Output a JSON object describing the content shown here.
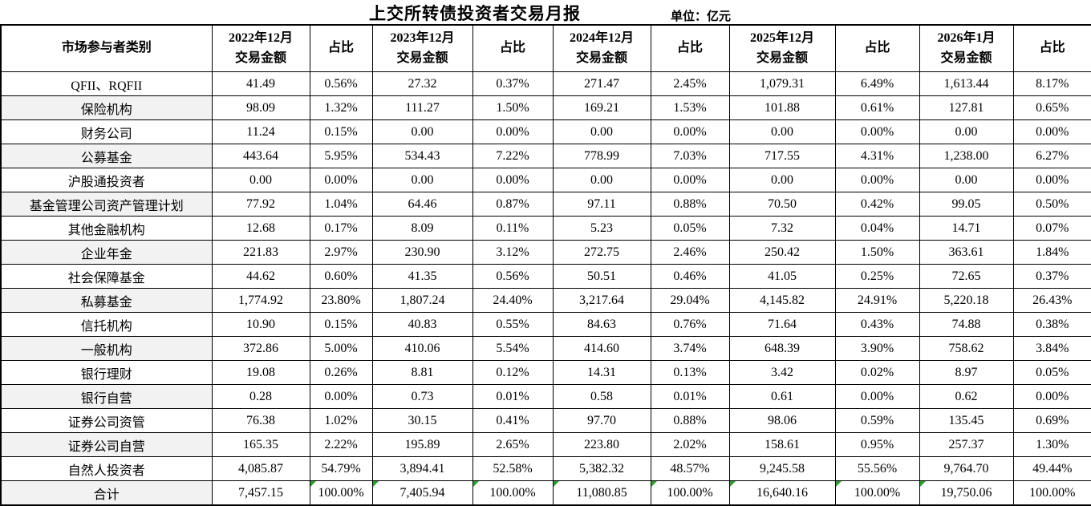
{
  "title": "上交所转债投资者交易月报",
  "unit_label": "单位：亿元",
  "table": {
    "category_header": "市场参与者类别",
    "amount_header": "交易金额",
    "ratio_header": "占比",
    "periods": [
      "2022年12月",
      "2023年12月",
      "2024年12月",
      "2025年12月",
      "2026年1月"
    ],
    "flag_color": "#2f9b2f",
    "rows": [
      {
        "label": "QFII、RQFII",
        "values": [
          "41.49",
          "0.56%",
          "27.32",
          "0.37%",
          "271.47",
          "2.45%",
          "1,079.31",
          "6.49%",
          "1,613.44",
          "8.17%"
        ]
      },
      {
        "label": "保险机构",
        "values": [
          "98.09",
          "1.32%",
          "111.27",
          "1.50%",
          "169.21",
          "1.53%",
          "101.88",
          "0.61%",
          "127.81",
          "0.65%"
        ]
      },
      {
        "label": "财务公司",
        "values": [
          "11.24",
          "0.15%",
          "0.00",
          "0.00%",
          "0.00",
          "0.00%",
          "0.00",
          "0.00%",
          "0.00",
          "0.00%"
        ]
      },
      {
        "label": "公募基金",
        "values": [
          "443.64",
          "5.95%",
          "534.43",
          "7.22%",
          "778.99",
          "7.03%",
          "717.55",
          "4.31%",
          "1,238.00",
          "6.27%"
        ]
      },
      {
        "label": "沪股通投资者",
        "values": [
          "0.00",
          "0.00%",
          "0.00",
          "0.00%",
          "0.00",
          "0.00%",
          "0.00",
          "0.00%",
          "0.00",
          "0.00%"
        ]
      },
      {
        "label": "基金管理公司资产管理计划",
        "values": [
          "77.92",
          "1.04%",
          "64.46",
          "0.87%",
          "97.11",
          "0.88%",
          "70.50",
          "0.42%",
          "99.05",
          "0.50%"
        ]
      },
      {
        "label": "其他金融机构",
        "values": [
          "12.68",
          "0.17%",
          "8.09",
          "0.11%",
          "5.23",
          "0.05%",
          "7.32",
          "0.04%",
          "14.71",
          "0.07%"
        ]
      },
      {
        "label": "企业年金",
        "values": [
          "221.83",
          "2.97%",
          "230.90",
          "3.12%",
          "272.75",
          "2.46%",
          "250.42",
          "1.50%",
          "363.61",
          "1.84%"
        ]
      },
      {
        "label": "社会保障基金",
        "values": [
          "44.62",
          "0.60%",
          "41.35",
          "0.56%",
          "50.51",
          "0.46%",
          "41.05",
          "0.25%",
          "72.65",
          "0.37%"
        ]
      },
      {
        "label": "私募基金",
        "values": [
          "1,774.92",
          "23.80%",
          "1,807.24",
          "24.40%",
          "3,217.64",
          "29.04%",
          "4,145.82",
          "24.91%",
          "5,220.18",
          "26.43%"
        ]
      },
      {
        "label": "信托机构",
        "values": [
          "10.90",
          "0.15%",
          "40.83",
          "0.55%",
          "84.63",
          "0.76%",
          "71.64",
          "0.43%",
          "74.88",
          "0.38%"
        ]
      },
      {
        "label": "一般机构",
        "values": [
          "372.86",
          "5.00%",
          "410.06",
          "5.54%",
          "414.60",
          "3.74%",
          "648.39",
          "3.90%",
          "758.62",
          "3.84%"
        ]
      },
      {
        "label": "银行理财",
        "values": [
          "19.08",
          "0.26%",
          "8.81",
          "0.12%",
          "14.31",
          "0.13%",
          "3.42",
          "0.02%",
          "8.97",
          "0.05%"
        ]
      },
      {
        "label": "银行自营",
        "values": [
          "0.28",
          "0.00%",
          "0.73",
          "0.01%",
          "0.58",
          "0.01%",
          "0.61",
          "0.00%",
          "0.62",
          "0.00%"
        ]
      },
      {
        "label": "证券公司资管",
        "values": [
          "76.38",
          "1.02%",
          "30.15",
          "0.41%",
          "97.70",
          "0.88%",
          "98.06",
          "0.59%",
          "135.45",
          "0.69%"
        ]
      },
      {
        "label": "证券公司自营",
        "values": [
          "165.35",
          "2.22%",
          "195.89",
          "2.65%",
          "223.80",
          "2.02%",
          "158.61",
          "0.95%",
          "257.37",
          "1.30%"
        ]
      },
      {
        "label": "自然人投资者",
        "values": [
          "4,085.87",
          "54.79%",
          "3,894.41",
          "52.58%",
          "5,382.32",
          "48.57%",
          "9,245.58",
          "55.56%",
          "9,764.70",
          "49.44%"
        ]
      },
      {
        "label": "合计",
        "values": [
          "7,457.15",
          "100.00%",
          "7,405.94",
          "100.00%",
          "11,080.85",
          "100.00%",
          "16,640.16",
          "100.00%",
          "19,750.06",
          "100.00%"
        ],
        "flag_cells": [
          1,
          2,
          3,
          4,
          5,
          6,
          7,
          8
        ]
      }
    ]
  }
}
